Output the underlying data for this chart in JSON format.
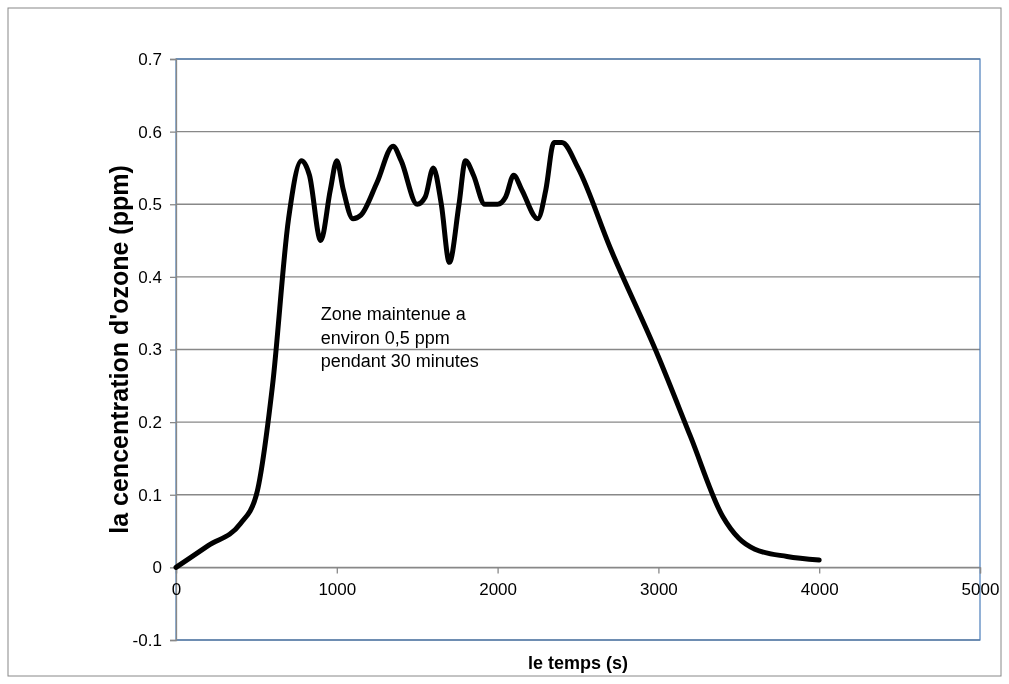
{
  "chart_data": {
    "type": "line",
    "xlabel": "le temps (s)",
    "ylabel": "la cencentration d'ozone (ppm)",
    "xlim": [
      0,
      5000
    ],
    "xticks": [
      0,
      1000,
      2000,
      3000,
      4000,
      5000
    ],
    "ylim": [
      -0.1,
      0.7
    ],
    "yticks": [
      -0.1,
      0,
      0.1,
      0.2,
      0.3,
      0.4,
      0.5,
      0.6,
      0.7
    ],
    "grid": "y",
    "marker": "none",
    "line_style": "solid",
    "annotations": [
      "Zone maintenue a\nenviron 0,5 ppm\npendant 30 minutes"
    ],
    "series": [
      {
        "color": "#000000",
        "x": [
          0,
          200,
          400,
          500,
          600,
          700,
          780,
          830,
          900,
          960,
          1000,
          1040,
          1100,
          1150,
          1250,
          1350,
          1400,
          1500,
          1550,
          1600,
          1650,
          1700,
          1760,
          1800,
          1850,
          1920,
          2000,
          2050,
          2100,
          2150,
          2250,
          2300,
          2350,
          2400,
          2500,
          2700,
          3000,
          3200,
          3400,
          3500,
          3600,
          3800,
          4000
        ],
        "values": [
          0,
          0.03,
          0.06,
          0.1,
          0.25,
          0.48,
          0.56,
          0.54,
          0.45,
          0.52,
          0.56,
          0.52,
          0.48,
          0.485,
          0.53,
          0.58,
          0.56,
          0.5,
          0.51,
          0.55,
          0.5,
          0.42,
          0.5,
          0.56,
          0.54,
          0.5,
          0.5,
          0.51,
          0.54,
          0.52,
          0.48,
          0.52,
          0.585,
          0.585,
          0.55,
          0.44,
          0.29,
          0.18,
          0.07,
          0.04,
          0.025,
          0.015,
          0.01
        ]
      }
    ]
  }
}
